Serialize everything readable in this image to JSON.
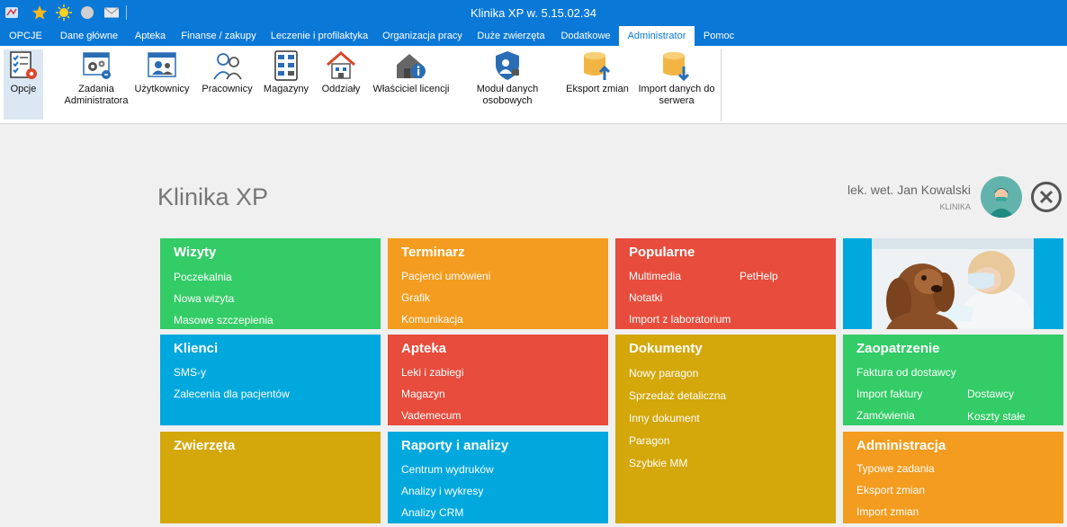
{
  "window": {
    "title": "Klinika XP w. 5.15.02.34"
  },
  "quick_access": [
    "app-logo-icon",
    "star-icon",
    "sun-icon",
    "circle-icon",
    "mail-icon"
  ],
  "menu": {
    "tabs": [
      "OPCJE",
      "Dane główne",
      "Apteka",
      "Finanse / zakupy",
      "Leczenie i profilaktyka",
      "Organizacja pracy",
      "Duże zwierzęta",
      "Dodatkowe",
      "Administrator",
      "Pomoc"
    ],
    "active": "Administrator"
  },
  "ribbon": {
    "buttons": [
      {
        "label": "Opcje",
        "icon": "options-checklist-gear-icon"
      },
      {
        "label": "Zadania Administratora",
        "icon": "admin-tasks-gears-icon"
      },
      {
        "label": "Użytkownicy",
        "icon": "users-icon"
      },
      {
        "label": "Pracownicy",
        "icon": "employees-icon"
      },
      {
        "label": "Magazyny",
        "icon": "warehouses-icon"
      },
      {
        "label": "Oddziały",
        "icon": "branches-house-icon"
      },
      {
        "label": "Właściciel licencji",
        "icon": "license-owner-house-info-icon"
      },
      {
        "label": "Moduł danych osobowych",
        "icon": "personal-data-shield-icon"
      },
      {
        "label": "Eksport zmian",
        "icon": "export-changes-database-icon"
      },
      {
        "label": "Import danych do serwera",
        "icon": "import-data-database-icon"
      }
    ]
  },
  "header": {
    "app_name": "Klinika XP",
    "user_name": "lek. wet. Jan Kowalski",
    "user_role": "KLINIKA"
  },
  "tiles": {
    "wizyty": {
      "title": "Wizyty",
      "links": [
        "Poczekalnia",
        "Nowa wizyta",
        "Masowe szczepienia"
      ]
    },
    "terminarz": {
      "title": "Terminarz",
      "links": [
        "Pacjenci umówieni",
        "Grafik",
        "Komunikacja"
      ]
    },
    "popularne": {
      "title": "Popularne",
      "links": [
        "Multimedia",
        "PetHelp",
        "Notatki",
        "Import z laboratorium"
      ]
    },
    "klienci": {
      "title": "Klienci",
      "links": [
        "SMS-y",
        "Zalecenia dla pacjentów"
      ]
    },
    "apteka": {
      "title": "Apteka",
      "links": [
        "Leki i zabiegi",
        "Magazyn",
        "Vademecum"
      ]
    },
    "dokumenty": {
      "title": "Dokumenty",
      "links": [
        "Nowy paragon",
        "Sprzedaż detaliczna",
        "Inny dokument",
        "Paragon",
        "Szybkie MM"
      ]
    },
    "zaopatrzenie": {
      "title": "Zaopatrzenie",
      "links": [
        "Faktura od dostawcy",
        "Import faktury",
        "Dostawcy",
        "Zamówienia",
        "Koszty stałe"
      ]
    },
    "zwierzeta": {
      "title": "Zwierzęta",
      "links": []
    },
    "raporty": {
      "title": "Raporty i analizy",
      "links": [
        "Centrum wydruków",
        "Analizy i wykresy",
        "Analizy CRM"
      ]
    },
    "administracja": {
      "title": "Administracja",
      "links": [
        "Typowe zadania",
        "Eksport zmian",
        "Import zmian"
      ]
    }
  },
  "colors": {
    "titlebar": "#0a78d7",
    "green": "#33cc66",
    "orange": "#f39c1f",
    "red": "#e74c3c",
    "blue": "#00a8de",
    "mustard": "#d4a70a"
  }
}
